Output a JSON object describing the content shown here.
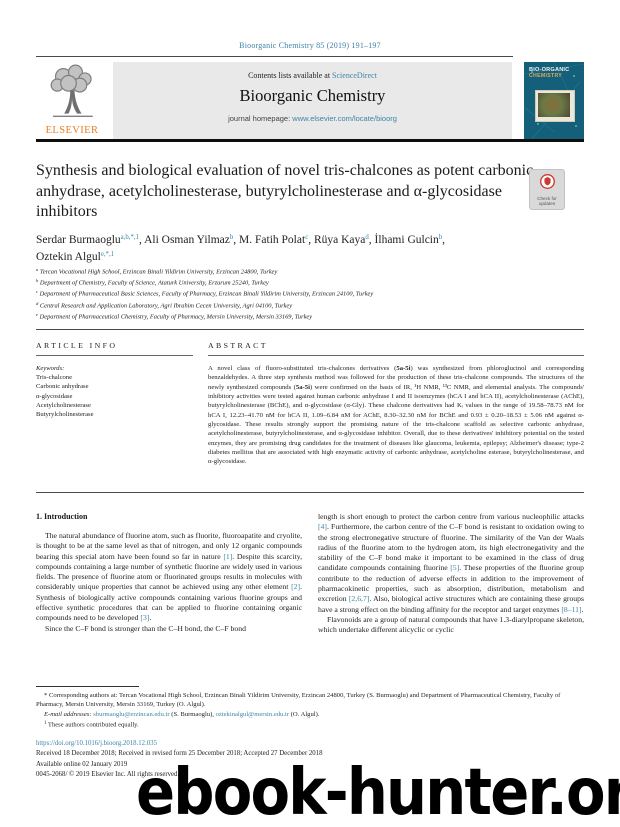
{
  "colors": {
    "accent_link": "#3e84a6",
    "elsevier_orange": "#e87e27",
    "cover_teal": "#14607a",
    "header_gray": "#e9e9e9"
  },
  "top": {
    "journal_ref": "Bioorganic Chemistry 85 (2019) 191–197"
  },
  "header": {
    "contents_prefix": "Contents lists available at ",
    "sciencedirect_label": "ScienceDirect",
    "journal_title": "Bioorganic Chemistry",
    "homepage_prefix": "journal homepage: ",
    "homepage_url": "www.elsevier.com/locate/bioorg",
    "elsevier_label": "ELSEVIER",
    "cover_title_line1": "BIO-ORGANIC",
    "cover_title_line2": "CHEMISTRY"
  },
  "article": {
    "title": "Synthesis and biological evaluation of novel tris-chalcones as potent carbonic anhydrase, acetylcholinesterase, butyrylcholinesterase and α-glycosidase inhibitors",
    "check_updates_label": "Check for updates",
    "authors": [
      {
        "name": "Serdar Burmaoglu",
        "sup": "a,b,*,1",
        "sep": ", "
      },
      {
        "name": "Ali Osman Yilmaz",
        "sup": "b",
        "sep": ", "
      },
      {
        "name": "M. Fatih Polat",
        "sup": "c",
        "sep": ", "
      },
      {
        "name": "Rüya Kaya",
        "sup": "d",
        "sep": ", "
      },
      {
        "name": "İlhami Gulcin",
        "sup": "b",
        "sep": ","
      },
      {
        "name": "Oztekin Algul",
        "sup": "e,*,1",
        "sep": ""
      }
    ],
    "affiliations": [
      {
        "sup": "a",
        "text": " Tercan Vocational High School, Erzincan Binali Yildirim University, Erzincan 24800, Turkey"
      },
      {
        "sup": "b",
        "text": " Department of Chemistry, Faculty of Science, Ataturk University, Erzurum 25240, Turkey"
      },
      {
        "sup": "c",
        "text": " Department of Pharmaceutical Basic Sciences, Faculty of Pharmacy, Erzincan Binali Yildirim University, Erzincan 24100, Turkey"
      },
      {
        "sup": "d",
        "text": " Central Research and Application Laboratory, Agri Ibrahim Cecen University, Agri 04100, Turkey"
      },
      {
        "sup": "e",
        "text": " Department of Pharmaceutical Chemistry, Faculty of Pharmacy, Mersin University, Mersin 33169, Turkey"
      }
    ]
  },
  "info": {
    "heading": "ARTICLE INFO",
    "keywords_label": "Keywords:",
    "keywords": [
      "Tris-chalcone",
      "Carbonic anhydrase",
      "α-glycosidase",
      "Acetylcholinesterase",
      "Butyrylcholinesterase"
    ]
  },
  "abstract": {
    "heading": "ABSTRACT",
    "a1": "A novel class of fluoro-substituted tris-chalcones derivatives (",
    "b1": "5a-5i",
    "a2": ") was synthesized from phloroglucinol and corresponding benzaldehydes. A three step synthesis method was followed for the production of these tris-chalcone compounds. The structures of the newly synthesized compounds (",
    "b2": "5a-5i",
    "a3": ") were confirmed on the basis of IR, ¹H NMR, ¹³C NMR, and elemental analysis. The compounds' inhibitory activities were tested against human carbonic anhydrase I and II isoenzymes (hCA I and hCA II), acetylcholinesterase (AChE), butyrylcholinesterase (BChE), and α-glycosidase (α-Gly). These chalcone derivatives had Kᵢ values in the range of 19.58–78.73 nM for hCA I, 12.23–41.70 nM for hCA II, 1.09–6.84 nM for AChE, 8.30–32.30 nM for BChE and 0.93 ± 0.20–18.53 ± 5.06 nM against α-glycosidase. These results strongly support the promising nature of the tris-chalcone scaffold as selective carbonic anhydrase, acetylcholinesterase, butyrylcholinesterase, and α-glycosidase inhibitor. Overall, due to these derivatives' inhibitory potential on the tested enzymes, they are promising drug candidates for the treatment of diseases like glaucoma, leukemia, epilepsy; Alzheimer's disease; type-2 diabetes mellitus that are associated with high enzymatic activity of carbonic anhydrase, acetylcholine esterase, butyrylcholinesterase, and α-glycosidase."
  },
  "body": {
    "section1_heading": "1. Introduction",
    "left_p1": "The natural abundance of fluorine atom, such as fluorite, fluoroapatite and cryolite, is thought to be at the same level as that of nitrogen, and only 12 organic compounds bearing this special atom have been found so far in nature [1]. Despite this scarcity, compounds containing a large number of synthetic fluorine are widely used in various fields. The presence of fluorine atom or fluorinated groups results in molecules with considerably unique properties that cannot be achieved using any other element [2]. Synthesis of biologically active compounds containing various fluorine groups and effective synthetic procedures that can be applied to fluorine containing organic compounds need to be developed [3].",
    "left_p2": "Since the C–F bond is stronger than the C–H bond, the C–F bond",
    "right_p1": "length is short enough to protect the carbon centre from various nucleophilic attacks [4]. Furthermore, the carbon centre of the C–F bond is resistant to oxidation owing to the strong electronegative structure of fluorine. The similarity of the Van der Waals radius of the fluorine atom to the hydrogen atom, its high electronegativity and the stability of the C–F bond make it important to be examined in the class of drug candidate compounds containing fluorine [5]. These properties of the fluorine group contribute to the reduction of adverse effects in addition to the improvement of pharmacokinetic properties, such as absorption, distribution, metabolism and excretion [2,6,7]. Also, biological active structures which are containing these groups have a strong effect on the binding affinity for the receptor and target enzymes [8–11].",
    "right_p2": "Flavonoids are a group of natural compounds that have 1.3-diarylpropane skeleton, which undertake different alicyclic or cyclic"
  },
  "footnotes": {
    "corresponding": "* Corresponding authors at: Tercan Vocational High School, Erzincan Binali Yildirim University, Erzincan 24800, Turkey (S. Burmaoglu) and Department of Pharmaceutical Chemistry, Faculty of Pharmacy, Mersin University, Mersin 33169, Turkey (O. Algul).",
    "email_label": "E-mail addresses: ",
    "email1": "sburmaoglu@erzincan.edu.tr",
    "email1_owner": " (S. Burmaoglu), ",
    "email2": "oztekinalgul@mersin.edu.tr",
    "email2_owner": " (O. Algul).",
    "contrib_sup": "1",
    "contrib_text": " These authors contributed equally."
  },
  "bottom": {
    "doi": "https://doi.org/10.1016/j.bioorg.2018.12.035",
    "received": "Received 18 December 2018; Received in revised form 25 December 2018; Accepted 27 December 2018",
    "available": "Available online 02 January 2019",
    "copyright": "0045-2068/ © 2019 Elsevier Inc. All rights reserved."
  },
  "watermark": {
    "text": "ebook-hunter.org"
  }
}
